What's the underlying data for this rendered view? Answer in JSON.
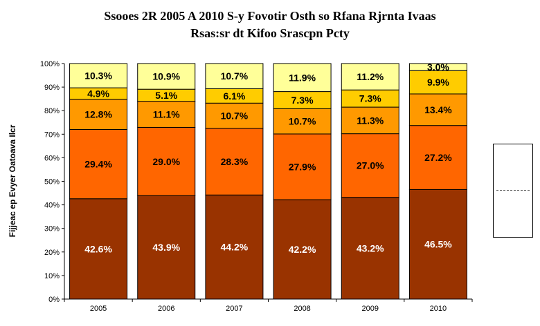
{
  "chart_data": {
    "type": "bar",
    "stacked": true,
    "title": "Ssooes 2R 2005 A 2010 S-y Fovotir Osth so Rfana Rjrnta Ivaas",
    "subtitle": "Rsas:sr dt Kifoo Srascpn Pcty",
    "ylabel": "Fijjeac ep Evyer Oatoava Ilcr",
    "xlabel": "",
    "ylim": [
      0,
      100
    ],
    "yticks": [
      "0%",
      "10%",
      "20%",
      "30%",
      "40%",
      "50%",
      "60%",
      "70%",
      "80%",
      "90%",
      "100%"
    ],
    "grid": false,
    "legend": "right",
    "categories": [
      "2005",
      "2006",
      "2007",
      "2008",
      "2009",
      "2010"
    ],
    "series": [
      {
        "color": "#993300",
        "label_color": "#ffffff",
        "values": [
          42.6,
          43.9,
          44.2,
          42.2,
          43.2,
          46.5
        ],
        "labels": [
          "42.6%",
          "43.9%",
          "44.2%",
          "42.2%",
          "43.2%",
          "46.5%"
        ]
      },
      {
        "color": "#ff6600",
        "label_color": "#000000",
        "values": [
          29.4,
          29.0,
          28.3,
          27.9,
          27.0,
          27.2
        ],
        "labels": [
          "29.4%",
          "29.0%",
          "28.3%",
          "27.9%",
          "27.0%",
          "27.2%"
        ]
      },
      {
        "color": "#ff9900",
        "label_color": "#000000",
        "values": [
          12.8,
          11.1,
          10.7,
          10.7,
          11.3,
          13.4
        ],
        "labels": [
          "12.8%",
          "11.1%",
          "10.7%",
          "10.7%",
          "11.3%",
          "13.4%"
        ]
      },
      {
        "color": "#ffcc00",
        "label_color": "#000000",
        "values": [
          4.9,
          5.1,
          6.1,
          7.3,
          7.3,
          9.9
        ],
        "labels": [
          "4.9%",
          "5.1%",
          "6.1%",
          "7.3%",
          "7.3%",
          "9.9%"
        ]
      },
      {
        "color": "#ffff99",
        "label_color": "#000000",
        "values": [
          10.3,
          10.9,
          10.7,
          11.9,
          11.2,
          3.0
        ],
        "labels": [
          "10.3%",
          "10.9%",
          "10.7%",
          "11.9%",
          "11.2%",
          "3.0%"
        ]
      }
    ]
  }
}
